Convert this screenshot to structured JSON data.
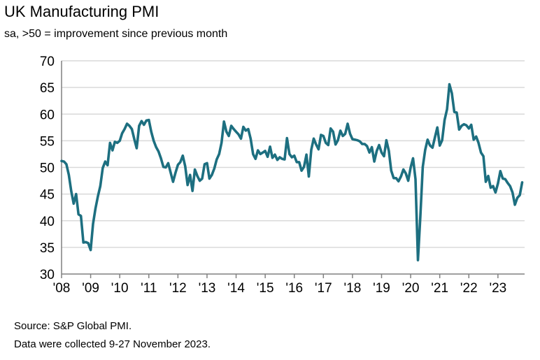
{
  "chart_data": {
    "type": "line",
    "title": "UK Manufacturing PMI",
    "subtitle": "sa, >50 = improvement since previous month",
    "xlabel": "",
    "ylabel": "",
    "ylim": [
      30,
      70
    ],
    "yticks": [
      30,
      35,
      40,
      45,
      50,
      55,
      60,
      65,
      70
    ],
    "xlim": [
      2008.0,
      2023.917
    ],
    "xticks": [
      {
        "value": 2008,
        "label": "'08"
      },
      {
        "value": 2009,
        "label": "'09"
      },
      {
        "value": 2010,
        "label": "'10"
      },
      {
        "value": 2011,
        "label": "'11"
      },
      {
        "value": 2012,
        "label": "'12"
      },
      {
        "value": 2013,
        "label": "'13"
      },
      {
        "value": 2014,
        "label": "'14"
      },
      {
        "value": 2015,
        "label": "'15"
      },
      {
        "value": 2016,
        "label": "'16"
      },
      {
        "value": 2017,
        "label": "'17"
      },
      {
        "value": 2018,
        "label": "'18"
      },
      {
        "value": 2019,
        "label": "'19"
      },
      {
        "value": 2020,
        "label": "'20"
      },
      {
        "value": 2021,
        "label": "'21"
      },
      {
        "value": 2022,
        "label": "'22"
      },
      {
        "value": 2023,
        "label": "'23"
      }
    ],
    "grid": true,
    "line_color": "#1d6f80",
    "grid_color": "#d9d9d9",
    "series": [
      {
        "values": [
          [
            2008.0,
            51.2
          ],
          [
            2008.083,
            51.1
          ],
          [
            2008.167,
            50.6
          ],
          [
            2008.25,
            48.6
          ],
          [
            2008.333,
            45.6
          ],
          [
            2008.417,
            43.2
          ],
          [
            2008.5,
            45.0
          ],
          [
            2008.583,
            41.2
          ],
          [
            2008.667,
            40.9
          ],
          [
            2008.75,
            35.9
          ],
          [
            2008.833,
            36.0
          ],
          [
            2008.917,
            35.8
          ],
          [
            2009.0,
            34.5
          ],
          [
            2009.083,
            39.4
          ],
          [
            2009.167,
            42.3
          ],
          [
            2009.25,
            44.6
          ],
          [
            2009.333,
            46.5
          ],
          [
            2009.417,
            49.9
          ],
          [
            2009.5,
            51.1
          ],
          [
            2009.583,
            50.4
          ],
          [
            2009.667,
            54.6
          ],
          [
            2009.75,
            53.2
          ],
          [
            2009.833,
            54.8
          ],
          [
            2009.917,
            54.6
          ],
          [
            2010.0,
            55.0
          ],
          [
            2010.083,
            56.4
          ],
          [
            2010.167,
            57.2
          ],
          [
            2010.25,
            58.2
          ],
          [
            2010.333,
            57.8
          ],
          [
            2010.417,
            57.2
          ],
          [
            2010.5,
            55.3
          ],
          [
            2010.583,
            53.6
          ],
          [
            2010.667,
            57.8
          ],
          [
            2010.75,
            58.7
          ],
          [
            2010.833,
            58.0
          ],
          [
            2010.917,
            58.8
          ],
          [
            2011.0,
            58.9
          ],
          [
            2011.083,
            56.7
          ],
          [
            2011.167,
            55.0
          ],
          [
            2011.25,
            53.8
          ],
          [
            2011.333,
            53.0
          ],
          [
            2011.417,
            51.7
          ],
          [
            2011.5,
            50.1
          ],
          [
            2011.583,
            50.0
          ],
          [
            2011.667,
            50.8
          ],
          [
            2011.75,
            49.0
          ],
          [
            2011.833,
            47.3
          ],
          [
            2011.917,
            49.0
          ],
          [
            2012.0,
            50.5
          ],
          [
            2012.083,
            51.0
          ],
          [
            2012.167,
            52.2
          ],
          [
            2012.25,
            50.2
          ],
          [
            2012.333,
            46.7
          ],
          [
            2012.417,
            48.6
          ],
          [
            2012.5,
            45.6
          ],
          [
            2012.583,
            49.6
          ],
          [
            2012.667,
            48.4
          ],
          [
            2012.75,
            47.5
          ],
          [
            2012.833,
            47.9
          ],
          [
            2012.917,
            50.6
          ],
          [
            2013.0,
            50.8
          ],
          [
            2013.083,
            47.9
          ],
          [
            2013.167,
            48.6
          ],
          [
            2013.25,
            49.8
          ],
          [
            2013.333,
            51.5
          ],
          [
            2013.417,
            52.5
          ],
          [
            2013.5,
            54.6
          ],
          [
            2013.583,
            58.6
          ],
          [
            2013.667,
            56.7
          ],
          [
            2013.75,
            55.9
          ],
          [
            2013.833,
            57.8
          ],
          [
            2013.917,
            57.2
          ],
          [
            2014.0,
            56.7
          ],
          [
            2014.083,
            56.2
          ],
          [
            2014.167,
            55.4
          ],
          [
            2014.25,
            57.6
          ],
          [
            2014.333,
            56.9
          ],
          [
            2014.417,
            57.2
          ],
          [
            2014.5,
            55.4
          ],
          [
            2014.583,
            52.5
          ],
          [
            2014.667,
            51.6
          ],
          [
            2014.75,
            53.2
          ],
          [
            2014.833,
            52.5
          ],
          [
            2014.917,
            52.8
          ],
          [
            2015.0,
            53.1
          ],
          [
            2015.083,
            52.0
          ],
          [
            2015.167,
            53.9
          ],
          [
            2015.25,
            51.8
          ],
          [
            2015.333,
            52.4
          ],
          [
            2015.417,
            51.4
          ],
          [
            2015.5,
            51.9
          ],
          [
            2015.583,
            51.6
          ],
          [
            2015.667,
            51.5
          ],
          [
            2015.75,
            55.5
          ],
          [
            2015.833,
            52.5
          ],
          [
            2015.917,
            51.9
          ],
          [
            2016.0,
            52.2
          ],
          [
            2016.083,
            51.0
          ],
          [
            2016.167,
            51.0
          ],
          [
            2016.25,
            49.4
          ],
          [
            2016.333,
            50.1
          ],
          [
            2016.417,
            52.4
          ],
          [
            2016.5,
            48.3
          ],
          [
            2016.583,
            53.3
          ],
          [
            2016.667,
            55.4
          ],
          [
            2016.75,
            54.3
          ],
          [
            2016.833,
            53.4
          ],
          [
            2016.917,
            56.1
          ],
          [
            2017.0,
            55.9
          ],
          [
            2017.083,
            54.6
          ],
          [
            2017.167,
            54.2
          ],
          [
            2017.25,
            57.3
          ],
          [
            2017.333,
            56.7
          ],
          [
            2017.417,
            54.3
          ],
          [
            2017.5,
            55.1
          ],
          [
            2017.583,
            56.9
          ],
          [
            2017.667,
            55.9
          ],
          [
            2017.75,
            56.3
          ],
          [
            2017.833,
            58.2
          ],
          [
            2017.917,
            56.3
          ],
          [
            2018.0,
            55.3
          ],
          [
            2018.083,
            55.2
          ],
          [
            2018.167,
            55.1
          ],
          [
            2018.25,
            54.9
          ],
          [
            2018.333,
            54.4
          ],
          [
            2018.417,
            54.4
          ],
          [
            2018.5,
            54.0
          ],
          [
            2018.583,
            52.8
          ],
          [
            2018.667,
            53.8
          ],
          [
            2018.75,
            51.1
          ],
          [
            2018.833,
            53.1
          ],
          [
            2018.917,
            54.2
          ],
          [
            2019.0,
            52.8
          ],
          [
            2019.083,
            52.1
          ],
          [
            2019.167,
            55.1
          ],
          [
            2019.25,
            53.1
          ],
          [
            2019.333,
            49.4
          ],
          [
            2019.417,
            48.0
          ],
          [
            2019.5,
            48.0
          ],
          [
            2019.583,
            47.4
          ],
          [
            2019.667,
            48.3
          ],
          [
            2019.75,
            49.6
          ],
          [
            2019.833,
            48.9
          ],
          [
            2019.917,
            47.5
          ],
          [
            2020.0,
            50.0
          ],
          [
            2020.083,
            51.7
          ],
          [
            2020.167,
            47.8
          ],
          [
            2020.25,
            32.6
          ],
          [
            2020.333,
            40.7
          ],
          [
            2020.417,
            50.1
          ],
          [
            2020.5,
            53.3
          ],
          [
            2020.583,
            55.2
          ],
          [
            2020.667,
            54.1
          ],
          [
            2020.75,
            53.7
          ],
          [
            2020.833,
            55.6
          ],
          [
            2020.917,
            57.5
          ],
          [
            2021.0,
            54.1
          ],
          [
            2021.083,
            55.1
          ],
          [
            2021.167,
            58.9
          ],
          [
            2021.25,
            60.9
          ],
          [
            2021.333,
            65.6
          ],
          [
            2021.417,
            63.9
          ],
          [
            2021.5,
            60.4
          ],
          [
            2021.583,
            60.3
          ],
          [
            2021.667,
            57.1
          ],
          [
            2021.75,
            57.8
          ],
          [
            2021.833,
            58.1
          ],
          [
            2021.917,
            57.9
          ],
          [
            2022.0,
            57.3
          ],
          [
            2022.083,
            58.0
          ],
          [
            2022.167,
            55.2
          ],
          [
            2022.25,
            55.8
          ],
          [
            2022.333,
            54.6
          ],
          [
            2022.417,
            52.8
          ],
          [
            2022.5,
            52.1
          ],
          [
            2022.583,
            47.3
          ],
          [
            2022.667,
            48.4
          ],
          [
            2022.75,
            46.2
          ],
          [
            2022.833,
            46.5
          ],
          [
            2022.917,
            45.3
          ],
          [
            2023.0,
            47.0
          ],
          [
            2023.083,
            49.3
          ],
          [
            2023.167,
            47.9
          ],
          [
            2023.25,
            47.8
          ],
          [
            2023.333,
            47.1
          ],
          [
            2023.417,
            46.5
          ],
          [
            2023.5,
            45.3
          ],
          [
            2023.583,
            43.0
          ],
          [
            2023.667,
            44.3
          ],
          [
            2023.75,
            44.8
          ],
          [
            2023.833,
            47.2
          ]
        ]
      }
    ]
  },
  "footer": {
    "source": "Source: S&P Global PMI.",
    "note": "Data were collected 9-27 November 2023."
  }
}
